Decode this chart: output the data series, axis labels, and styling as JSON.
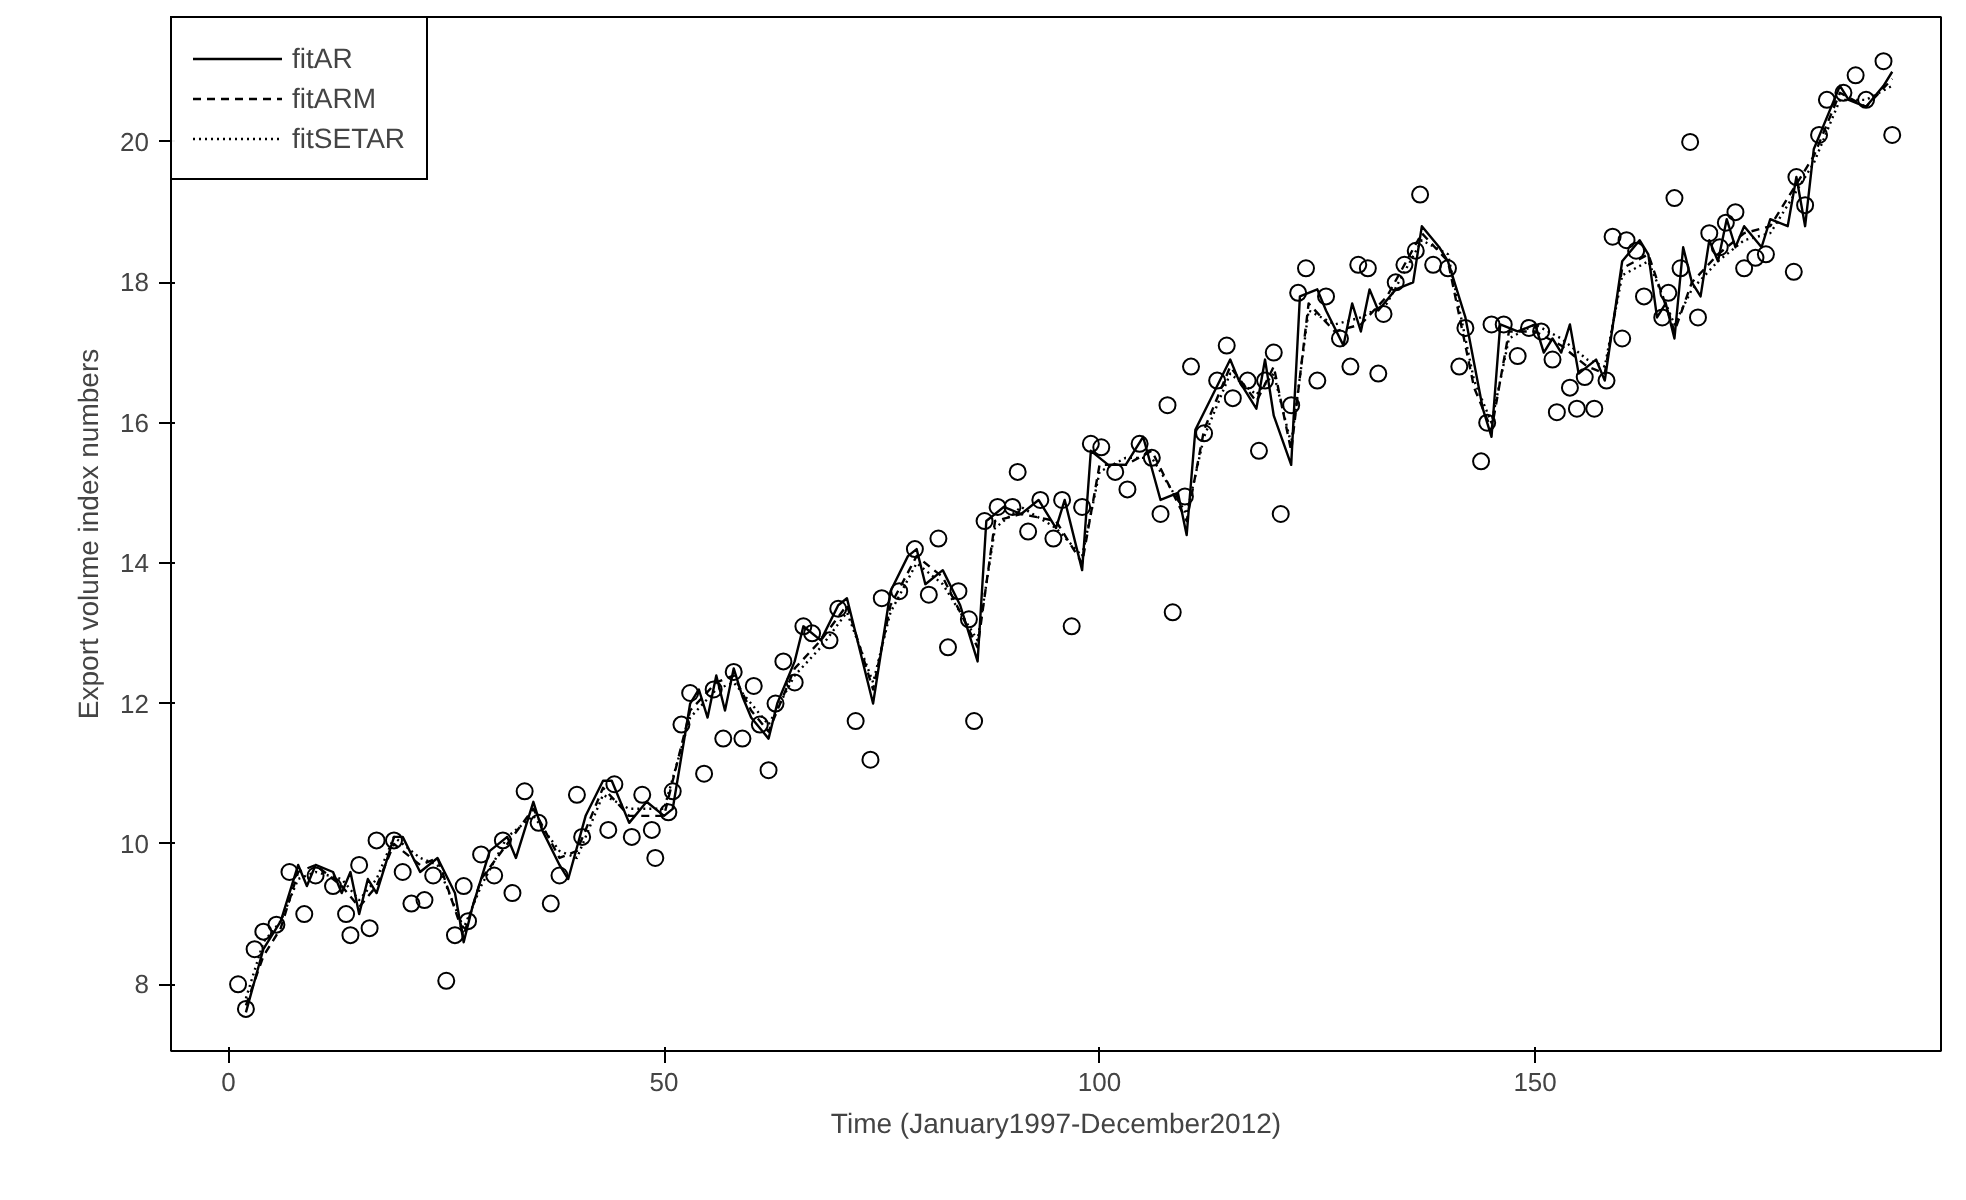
{
  "chart_data": {
    "type": "line",
    "xlabel": "Time (January1997-December2012)",
    "ylabel": "Export volume index numbers",
    "xlim": [
      -6.6,
      196.6
    ],
    "ylim": [
      7.05,
      21.78
    ],
    "xticks": [
      0,
      50,
      100,
      150
    ],
    "yticks": [
      8,
      10,
      12,
      14,
      16,
      18,
      20
    ],
    "grid": false,
    "legend": "top left",
    "series": [
      {
        "type": "scatter",
        "marker": "circle",
        "color": "#000000",
        "x": [
          1.1,
          2,
          3,
          4,
          5.5,
          7,
          8.7,
          10,
          12,
          13.5,
          14,
          15,
          16.2,
          17,
          19,
          20,
          21,
          22.5,
          23.5,
          25,
          26,
          27,
          27.5,
          29,
          30.5,
          31.5,
          32.6,
          34,
          35.6,
          37,
          38,
          40,
          40.6,
          43.6,
          44.3,
          46.3,
          47.5,
          48.6,
          49,
          50.5,
          51,
          52,
          53,
          54.6,
          55.7,
          56.8,
          58,
          59,
          60.3,
          61,
          62,
          62.8,
          63.7,
          65,
          66,
          67,
          69,
          70,
          72,
          73.7,
          75,
          77,
          78.8,
          80.4,
          81.5,
          82.6,
          83.8,
          85,
          85.6,
          86.8,
          88.3,
          90,
          90.6,
          91.8,
          93.2,
          94.7,
          95.7,
          96.8,
          98,
          99,
          100.2,
          101.8,
          103.2,
          104.6,
          106,
          107,
          107.8,
          108.4,
          109.8,
          110.5,
          112,
          113.5,
          114.6,
          115.3,
          117,
          118.3,
          119,
          120,
          120.8,
          122,
          122.8,
          123.7,
          125,
          126,
          127.6,
          128.8,
          129.7,
          130.8,
          132,
          132.6,
          134,
          135,
          136.3,
          136.8,
          138.3,
          140,
          141.3,
          142,
          143.8,
          144.5,
          145,
          146.4,
          148,
          149.3,
          150.7,
          152,
          152.5,
          154,
          154.8,
          155.7,
          156.8,
          158.2,
          158.9,
          160,
          160.5,
          161.6,
          162.5,
          164.6,
          165.3,
          166,
          166.7,
          167.8,
          168.7,
          170,
          171.2,
          171.9,
          173,
          174,
          175.3,
          176.5,
          179.7,
          180,
          181,
          182.6,
          183.5,
          185.4,
          186.8,
          188,
          190,
          191
        ],
        "values": [
          8.0,
          7.65,
          8.5,
          8.75,
          8.85,
          9.6,
          9.0,
          9.55,
          9.4,
          9.0,
          8.7,
          9.7,
          8.8,
          10.05,
          10.05,
          9.6,
          9.15,
          9.2,
          9.55,
          8.05,
          8.7,
          9.4,
          8.9,
          9.85,
          9.55,
          10.05,
          9.3,
          10.75,
          10.3,
          9.15,
          9.55,
          10.7,
          10.1,
          10.2,
          10.85,
          10.1,
          10.7,
          10.2,
          9.8,
          10.45,
          10.75,
          11.7,
          12.15,
          11.0,
          12.2,
          11.5,
          12.45,
          11.5,
          12.25,
          11.7,
          11.05,
          12.0,
          12.6,
          12.3,
          13.1,
          13.0,
          12.9,
          13.35,
          11.75,
          11.2,
          13.5,
          13.6,
          14.2,
          13.55,
          14.35,
          12.8,
          13.6,
          13.2,
          11.75,
          14.6,
          14.8,
          14.8,
          15.3,
          14.45,
          14.9,
          14.35,
          14.9,
          13.1,
          14.8,
          15.7,
          15.65,
          15.3,
          15.05,
          15.7,
          15.5,
          14.7,
          16.25,
          13.3,
          14.95,
          16.8,
          15.85,
          16.6,
          17.1,
          16.35,
          16.6,
          15.6,
          16.6,
          17.0,
          14.7,
          16.25,
          17.85,
          18.2,
          16.6,
          17.8,
          17.2,
          16.8,
          18.25,
          18.2,
          16.7,
          17.55,
          18.0,
          18.25,
          18.45,
          19.25,
          18.25,
          18.2,
          16.8,
          17.35,
          15.45,
          16.0,
          17.4,
          17.4,
          16.95,
          17.35,
          17.3,
          16.9,
          16.15,
          16.5,
          16.2,
          16.65,
          16.2,
          16.6,
          18.65,
          17.2,
          18.6,
          18.45,
          17.8,
          17.5,
          17.85,
          19.2,
          18.2,
          20.0,
          17.5,
          18.7,
          18.5,
          18.85,
          19.0,
          18.2,
          18.35,
          18.4,
          18.15,
          19.5,
          19.1,
          20.1,
          20.6,
          20.7,
          20.95,
          20.6,
          21.15,
          20.1
        ]
      },
      {
        "name": "fitAR",
        "line_style": "solid",
        "color": "#000000",
        "x": [
          2,
          4,
          6,
          8,
          9,
          10,
          12,
          13,
          14,
          15,
          16,
          17,
          19,
          20,
          22,
          24,
          26,
          27,
          28,
          30,
          32,
          33,
          35,
          36,
          38,
          39,
          41,
          43,
          44,
          46,
          48,
          50,
          51,
          53,
          54,
          55,
          56,
          57,
          58,
          59,
          60,
          62,
          63,
          65,
          66,
          68,
          70,
          71,
          72,
          74,
          76,
          78,
          79,
          80,
          82,
          84,
          86,
          87,
          89,
          91,
          93,
          95,
          96,
          98,
          99,
          101,
          103,
          105,
          107,
          109,
          110,
          111,
          113,
          115,
          116,
          118,
          119,
          120,
          122,
          123,
          125,
          126,
          128,
          129,
          130,
          131,
          132,
          134,
          136,
          137,
          139,
          140,
          142,
          144,
          145,
          146,
          148,
          150,
          151,
          152,
          153,
          154,
          155,
          157,
          158,
          160,
          162,
          163,
          164,
          165,
          166,
          167,
          168,
          169,
          170,
          171,
          172,
          173,
          174,
          176,
          177,
          179,
          180,
          181,
          182,
          184,
          185,
          186,
          188,
          190,
          191
        ],
        "values": [
          7.6,
          8.5,
          8.9,
          9.7,
          9.4,
          9.7,
          9.6,
          9.3,
          9.6,
          9.0,
          9.5,
          9.3,
          10.1,
          10.1,
          9.6,
          9.8,
          9.3,
          8.6,
          9.1,
          9.9,
          10.1,
          9.8,
          10.6,
          10.2,
          9.7,
          9.5,
          10.4,
          10.9,
          10.9,
          10.3,
          10.6,
          10.4,
          10.5,
          12.0,
          12.2,
          11.8,
          12.4,
          11.9,
          12.5,
          12.1,
          11.8,
          11.5,
          12.0,
          12.6,
          13.1,
          12.9,
          13.4,
          13.5,
          13.0,
          12.0,
          13.6,
          14.1,
          14.2,
          13.7,
          13.9,
          13.4,
          12.6,
          14.6,
          14.8,
          14.7,
          14.9,
          14.5,
          14.9,
          13.9,
          15.6,
          15.4,
          15.4,
          15.8,
          14.9,
          15.0,
          14.4,
          15.9,
          16.4,
          16.9,
          16.6,
          16.2,
          16.9,
          16.1,
          15.4,
          17.8,
          17.9,
          17.6,
          17.1,
          17.7,
          17.3,
          17.9,
          17.6,
          17.9,
          18.0,
          18.8,
          18.5,
          18.3,
          17.5,
          16.2,
          15.8,
          17.4,
          17.3,
          17.4,
          17.0,
          17.2,
          17.0,
          17.4,
          16.7,
          16.9,
          16.6,
          18.3,
          18.6,
          18.4,
          17.5,
          17.7,
          17.2,
          18.5,
          18.0,
          17.8,
          18.6,
          18.3,
          18.9,
          18.5,
          18.8,
          18.5,
          18.9,
          18.8,
          19.5,
          18.8,
          19.9,
          20.5,
          20.8,
          20.6,
          20.5,
          20.8,
          21.0
        ]
      },
      {
        "name": "fitARM",
        "line_style": "dashed",
        "color": "#000000",
        "x": [
          2,
          4,
          6,
          8,
          10,
          13,
          15,
          17,
          19,
          22,
          24,
          27,
          29,
          32,
          35,
          38,
          40,
          43,
          46,
          50,
          53,
          56,
          58,
          60,
          62,
          65,
          68,
          71,
          74,
          76,
          79,
          82,
          86,
          88,
          91,
          95,
          98,
          100,
          103,
          106,
          110,
          112,
          115,
          118,
          120,
          122,
          124,
          127,
          130,
          133,
          137,
          140,
          143,
          145,
          147,
          150,
          153,
          156,
          158,
          160,
          163,
          166,
          168,
          171,
          174,
          177,
          180,
          182,
          185,
          188,
          191
        ],
        "values": [
          7.7,
          8.4,
          8.8,
          9.6,
          9.7,
          9.4,
          9.1,
          9.4,
          10.0,
          9.7,
          9.8,
          8.7,
          9.5,
          10.0,
          10.5,
          9.8,
          9.9,
          10.8,
          10.4,
          10.4,
          11.9,
          12.3,
          12.4,
          11.9,
          11.6,
          12.5,
          12.9,
          13.4,
          12.2,
          13.4,
          14.1,
          13.8,
          12.8,
          14.6,
          14.7,
          14.6,
          14.0,
          15.4,
          15.4,
          15.6,
          14.6,
          15.9,
          16.8,
          16.3,
          16.8,
          15.6,
          17.7,
          17.3,
          17.4,
          17.8,
          18.7,
          18.3,
          16.5,
          15.9,
          17.3,
          17.3,
          17.1,
          16.8,
          16.7,
          18.2,
          18.4,
          17.3,
          18.0,
          18.4,
          18.7,
          18.8,
          19.4,
          19.8,
          20.7,
          20.5,
          20.9
        ]
      },
      {
        "name": "fitSETAR",
        "line_style": "dotted",
        "color": "#000000",
        "x": [
          2,
          4,
          6,
          8,
          10,
          13,
          15,
          17,
          19,
          22,
          24,
          27,
          29,
          32,
          35,
          38,
          40,
          43,
          46,
          50,
          53,
          56,
          58,
          60,
          62,
          65,
          68,
          71,
          74,
          76,
          79,
          82,
          86,
          88,
          91,
          95,
          98,
          100,
          103,
          106,
          110,
          112,
          115,
          118,
          120,
          122,
          124,
          127,
          130,
          133,
          137,
          140,
          143,
          145,
          147,
          150,
          153,
          156,
          158,
          160,
          163,
          166,
          168,
          171,
          174,
          177,
          180,
          182,
          185,
          188,
          191
        ],
        "values": [
          7.8,
          8.6,
          8.9,
          9.5,
          9.6,
          9.5,
          9.2,
          9.5,
          10.1,
          9.8,
          9.7,
          8.8,
          9.4,
          10.1,
          10.4,
          9.9,
          9.8,
          10.7,
          10.5,
          10.5,
          11.8,
          12.2,
          12.3,
          12.0,
          11.7,
          12.4,
          12.8,
          13.3,
          12.3,
          13.3,
          14.0,
          13.7,
          12.9,
          14.5,
          14.8,
          14.5,
          14.1,
          15.3,
          15.5,
          15.5,
          14.7,
          15.8,
          16.7,
          16.4,
          16.7,
          15.7,
          17.6,
          17.4,
          17.5,
          17.7,
          18.6,
          18.4,
          16.6,
          16.0,
          17.2,
          17.4,
          17.2,
          16.9,
          16.8,
          18.1,
          18.3,
          17.4,
          17.9,
          18.3,
          18.6,
          18.7,
          19.3,
          19.7,
          20.6,
          20.6,
          20.8
        ]
      }
    ]
  }
}
